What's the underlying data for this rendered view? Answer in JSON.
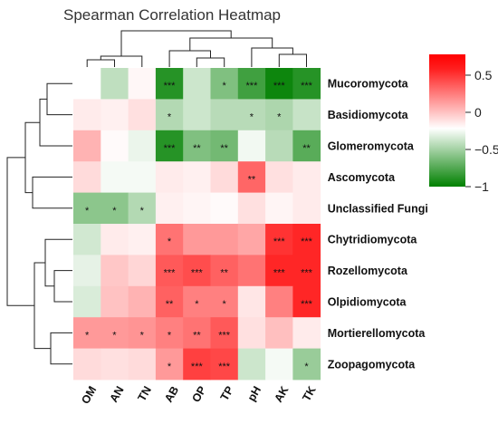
{
  "chart_data": {
    "type": "heatmap",
    "title": "Spearman Correlation Heatmap",
    "rows": [
      "Mucoromycota",
      "Basidiomycota",
      "Glomeromycota",
      "Ascomycota",
      "Unclassified Fungi",
      "Chytridiomycota",
      "Rozellomycota",
      "Olpidiomycota",
      "Mortierellomycota",
      "Zoopagomycota"
    ],
    "columns": [
      "OM",
      "AN",
      "TN",
      "AB",
      "OP",
      "TP",
      "pH",
      "AK",
      "TK"
    ],
    "values": [
      [
        0.0,
        -0.25,
        0.03,
        -0.85,
        -0.2,
        -0.5,
        -0.75,
        -0.95,
        -0.85
      ],
      [
        0.08,
        0.06,
        0.12,
        -0.3,
        -0.2,
        -0.28,
        -0.28,
        -0.32,
        -0.22
      ],
      [
        0.3,
        0.02,
        -0.08,
        -0.85,
        -0.5,
        -0.55,
        -0.05,
        -0.28,
        -0.65
      ],
      [
        0.14,
        -0.04,
        -0.04,
        0.08,
        0.06,
        0.14,
        0.6,
        0.12,
        0.08
      ],
      [
        -0.45,
        -0.45,
        -0.3,
        0.06,
        0.04,
        0.02,
        0.12,
        0.04,
        0.08
      ],
      [
        -0.18,
        0.08,
        0.06,
        0.55,
        0.4,
        0.4,
        0.35,
        0.8,
        0.85
      ],
      [
        -0.1,
        0.22,
        0.16,
        0.65,
        0.7,
        0.62,
        0.55,
        0.85,
        0.85
      ],
      [
        -0.15,
        0.24,
        0.3,
        0.62,
        0.5,
        0.5,
        0.1,
        0.5,
        0.85
      ],
      [
        0.4,
        0.4,
        0.42,
        0.5,
        0.55,
        0.65,
        0.12,
        0.25,
        0.08
      ],
      [
        0.14,
        0.12,
        0.14,
        0.4,
        0.75,
        0.72,
        -0.2,
        -0.04,
        -0.4
      ]
    ],
    "significance": [
      [
        "",
        "",
        "",
        "***",
        "",
        "*",
        "***",
        "***",
        "***"
      ],
      [
        "",
        "",
        "",
        "*",
        "",
        "",
        "*",
        "*",
        ""
      ],
      [
        "",
        "",
        "",
        "***",
        "**",
        "**",
        "",
        "",
        "**"
      ],
      [
        "",
        "",
        "",
        "",
        "",
        "",
        "**",
        "",
        ""
      ],
      [
        "*",
        "*",
        "*",
        "",
        "",
        "",
        "",
        "",
        ""
      ],
      [
        "",
        "",
        "",
        "*",
        "",
        "",
        "",
        "***",
        "***"
      ],
      [
        "",
        "",
        "",
        "***",
        "***",
        "**",
        "",
        "***",
        "***"
      ],
      [
        "",
        "",
        "",
        "**",
        "*",
        "*",
        "",
        "",
        "***"
      ],
      [
        "*",
        "*",
        "*",
        "*",
        "**",
        "***",
        "",
        "",
        ""
      ],
      [
        "",
        "",
        "",
        "*",
        "***",
        "***",
        "",
        "",
        "*"
      ]
    ],
    "color_scale": {
      "range": [
        -1,
        1
      ],
      "min_color": "#008000",
      "mid_color": "#ffffff",
      "max_color": "#ff0000",
      "ticks": [
        "0.5",
        "0",
        "−0.5",
        "−1"
      ]
    },
    "legend_placement": "right"
  }
}
